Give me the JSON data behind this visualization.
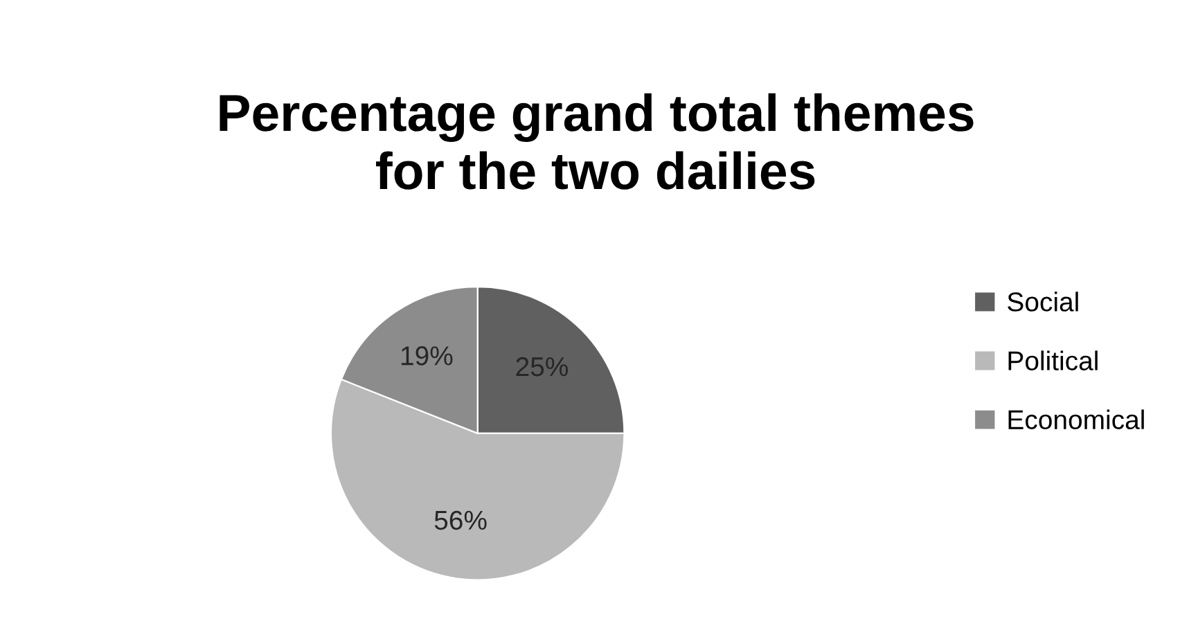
{
  "chart_data": {
    "type": "pie",
    "title": "Percentage grand total themes\nfor the two dailies",
    "categories": [
      "Social",
      "Political",
      "Economical"
    ],
    "values": [
      25,
      56,
      19
    ],
    "colors": [
      "#606060",
      "#b9b9b9",
      "#8c8c8c"
    ],
    "value_labels": [
      "25%",
      "56%",
      "19%"
    ],
    "legend": "right"
  }
}
